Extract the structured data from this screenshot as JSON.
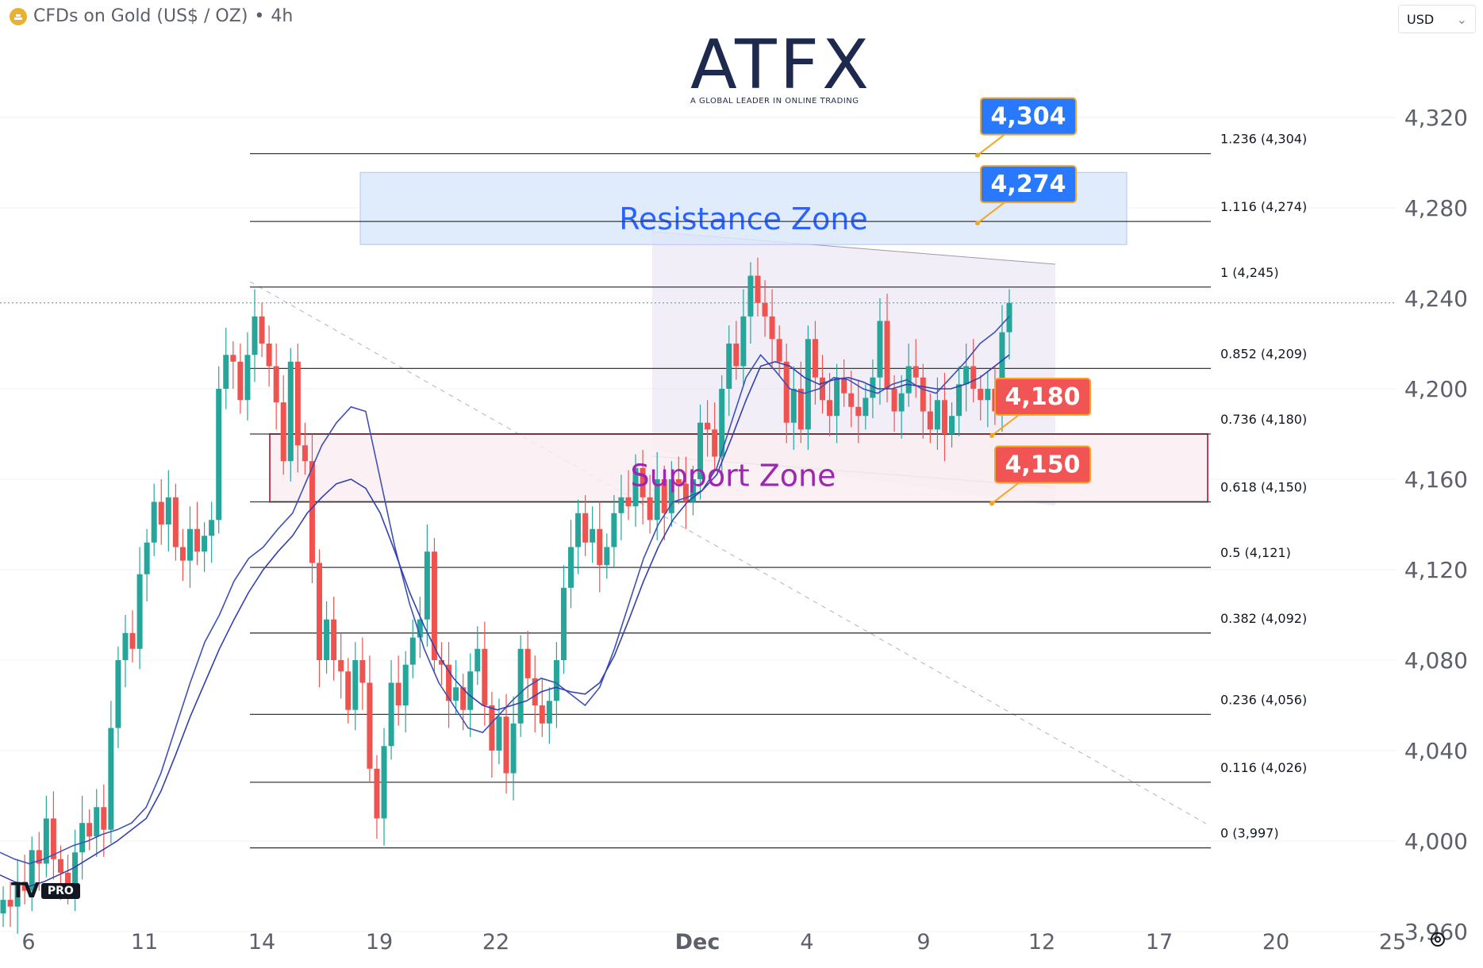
{
  "header": {
    "symbol": "CFDs on Gold (US$ / OZ)",
    "separator": "•",
    "interval": "4h",
    "currency": "USD",
    "chevron": "⌄"
  },
  "logo": {
    "main": "ATFX",
    "subtitle": "A GLOBAL LEADER IN ONLINE TRADING"
  },
  "platform_badge": {
    "mark": "TV",
    "label": "PRO"
  },
  "colors": {
    "up": "#26a69a",
    "down": "#ef5350",
    "ma_fast": "#3f51b5",
    "ma_slow": "#3340b0",
    "resistance_zone": "#dbe8fb",
    "resistance_text": "#2962ff",
    "support_zone": "#fbeef2",
    "support_border": "#b71c3c",
    "support_text": "#9c27b0",
    "blue_tag": "#2979ff",
    "red_tag": "#f05454",
    "tag_border": "#f5a623",
    "fib_line": "#3a3a3a",
    "channel": "#ece8f6"
  },
  "chart_data": {
    "type": "candlestick",
    "title": "CFDs on Gold (US$ / OZ) • 4h",
    "y_axis": {
      "ticks": [
        3960,
        4000,
        4040,
        4080,
        4120,
        4160,
        4200,
        4240,
        4280,
        4320
      ],
      "ylim": [
        3950,
        4330
      ],
      "tick_labels": [
        "3,960",
        "4,000",
        "4,040",
        "4,080",
        "4,120",
        "4,160",
        "4,200",
        "4,240",
        "4,280",
        "4,320"
      ]
    },
    "x_axis": {
      "tick_labels": [
        "6",
        "11",
        "14",
        "19",
        "22",
        "Dec",
        "4",
        "9",
        "12",
        "17",
        "20",
        "25"
      ]
    },
    "fibonacci": [
      {
        "label": "1.236 (4,304)",
        "value": 4304
      },
      {
        "label": "1.116 (4,274)",
        "value": 4274
      },
      {
        "label": "1 (4,245)",
        "value": 4245
      },
      {
        "label": "0.852 (4,209)",
        "value": 4209
      },
      {
        "label": "0.736 (4,180)",
        "value": 4180
      },
      {
        "label": "0.618 (4,150)",
        "value": 4150
      },
      {
        "label": "0.5 (4,121)",
        "value": 4121
      },
      {
        "label": "0.382 (4,092)",
        "value": 4092
      },
      {
        "label": "0.236 (4,056)",
        "value": 4056
      },
      {
        "label": "0.116 (4,026)",
        "value": 4026
      },
      {
        "label": "0 (3,997)",
        "value": 3997
      }
    ],
    "zones": [
      {
        "name": "Resistance Zone",
        "low": 4268,
        "high": 4295
      },
      {
        "name": "Support Zone",
        "low": 4150,
        "high": 4180
      }
    ],
    "price_tags": [
      {
        "text": "4,304",
        "value": 4304,
        "style": "blue"
      },
      {
        "text": "4,274",
        "value": 4274,
        "style": "blue"
      },
      {
        "text": "4,180",
        "value": 4180,
        "style": "red"
      },
      {
        "text": "4,150",
        "value": 4150,
        "style": "red"
      }
    ],
    "current_price": 4238,
    "candles": [
      [
        3968,
        3974
      ],
      [
        3974,
        3971
      ],
      [
        3971,
        3982
      ],
      [
        3982,
        3978
      ],
      [
        3978,
        3996
      ],
      [
        3996,
        3990
      ],
      [
        3990,
        4010
      ],
      [
        4010,
        3992
      ],
      [
        3992,
        3986
      ],
      [
        3986,
        3978
      ],
      [
        3978,
        3995
      ],
      [
        3995,
        4008
      ],
      [
        4008,
        4002
      ],
      [
        4002,
        4015
      ],
      [
        4015,
        4005
      ],
      [
        4005,
        4050
      ],
      [
        4050,
        4080
      ],
      [
        4080,
        4092
      ],
      [
        4092,
        4085
      ],
      [
        4085,
        4118
      ],
      [
        4118,
        4132
      ],
      [
        4132,
        4150
      ],
      [
        4150,
        4140
      ],
      [
        4140,
        4152
      ],
      [
        4152,
        4130
      ],
      [
        4130,
        4124
      ],
      [
        4124,
        4138
      ],
      [
        4138,
        4128
      ],
      [
        4128,
        4135
      ],
      [
        4135,
        4142
      ],
      [
        4142,
        4200
      ],
      [
        4200,
        4215
      ],
      [
        4215,
        4212
      ],
      [
        4212,
        4195
      ],
      [
        4195,
        4215
      ],
      [
        4215,
        4232
      ],
      [
        4232,
        4220
      ],
      [
        4220,
        4210
      ],
      [
        4210,
        4194
      ],
      [
        4194,
        4168
      ],
      [
        4168,
        4212
      ],
      [
        4212,
        4175
      ],
      [
        4175,
        4168
      ],
      [
        4168,
        4123
      ],
      [
        4123,
        4080
      ],
      [
        4080,
        4098
      ],
      [
        4098,
        4080
      ],
      [
        4080,
        4075
      ],
      [
        4075,
        4058
      ],
      [
        4058,
        4080
      ],
      [
        4080,
        4070
      ],
      [
        4070,
        4032
      ],
      [
        4032,
        4010
      ],
      [
        4010,
        4042
      ],
      [
        4042,
        4070
      ],
      [
        4070,
        4060
      ],
      [
        4060,
        4078
      ],
      [
        4078,
        4090
      ],
      [
        4090,
        4098
      ],
      [
        4098,
        4128
      ],
      [
        4128,
        4080
      ],
      [
        4080,
        4078
      ],
      [
        4078,
        4062
      ],
      [
        4062,
        4068
      ],
      [
        4068,
        4058
      ],
      [
        4058,
        4075
      ],
      [
        4075,
        4085
      ],
      [
        4085,
        4060
      ],
      [
        4060,
        4040
      ],
      [
        4040,
        4055
      ],
      [
        4055,
        4030
      ],
      [
        4030,
        4052
      ],
      [
        4052,
        4085
      ],
      [
        4085,
        4072
      ],
      [
        4072,
        4060
      ],
      [
        4060,
        4052
      ],
      [
        4052,
        4062
      ],
      [
        4062,
        4080
      ],
      [
        4080,
        4112
      ],
      [
        4112,
        4130
      ],
      [
        4130,
        4145
      ],
      [
        4145,
        4132
      ],
      [
        4132,
        4138
      ],
      [
        4138,
        4122
      ],
      [
        4122,
        4130
      ],
      [
        4130,
        4145
      ],
      [
        4145,
        4152
      ],
      [
        4152,
        4148
      ],
      [
        4148,
        4165
      ],
      [
        4165,
        4152
      ],
      [
        4152,
        4142
      ],
      [
        4142,
        4160
      ],
      [
        4160,
        4145
      ],
      [
        4145,
        4160
      ],
      [
        4160,
        4158
      ],
      [
        4158,
        4150
      ],
      [
        4150,
        4160
      ],
      [
        4160,
        4185
      ],
      [
        4185,
        4182
      ],
      [
        4182,
        4170
      ],
      [
        4170,
        4200
      ],
      [
        4200,
        4220
      ],
      [
        4220,
        4210
      ],
      [
        4210,
        4232
      ],
      [
        4232,
        4250
      ],
      [
        4250,
        4238
      ],
      [
        4238,
        4232
      ],
      [
        4232,
        4222
      ],
      [
        4222,
        4212
      ],
      [
        4212,
        4185
      ],
      [
        4185,
        4200
      ],
      [
        4200,
        4182
      ],
      [
        4182,
        4222
      ],
      [
        4222,
        4205
      ],
      [
        4205,
        4195
      ],
      [
        4195,
        4188
      ],
      [
        4188,
        4205
      ],
      [
        4205,
        4198
      ],
      [
        4198,
        4192
      ],
      [
        4192,
        4188
      ],
      [
        4188,
        4196
      ],
      [
        4196,
        4205
      ],
      [
        4205,
        4230
      ],
      [
        4230,
        4200
      ],
      [
        4200,
        4190
      ],
      [
        4190,
        4198
      ],
      [
        4198,
        4210
      ],
      [
        4210,
        4205
      ],
      [
        4205,
        4190
      ],
      [
        4190,
        4182
      ],
      [
        4182,
        4195
      ],
      [
        4195,
        4180
      ],
      [
        4180,
        4188
      ],
      [
        4188,
        4202
      ],
      [
        4202,
        4210
      ],
      [
        4210,
        4200
      ],
      [
        4200,
        4195
      ],
      [
        4195,
        4200
      ],
      [
        4200,
        4190
      ],
      [
        4190,
        4225
      ],
      [
        4225,
        4238
      ]
    ],
    "moving_averages": [
      {
        "name": "MA fast",
        "values": [
          3995,
          3992,
          3990,
          3992,
          3995,
          3998,
          4000,
          4003,
          4005,
          4008,
          4015,
          4030,
          4050,
          4070,
          4088,
          4100,
          4115,
          4125,
          4130,
          4138,
          4145,
          4160,
          4175,
          4185,
          4192,
          4190,
          4160,
          4130,
          4105,
          4085,
          4070,
          4060,
          4050,
          4048,
          4055,
          4062,
          4068,
          4072,
          4070,
          4065,
          4060,
          4068,
          4085,
          4105,
          4125,
          4140,
          4150,
          4152,
          4155,
          4165,
          4185,
          4205,
          4215,
          4208,
          4200,
          4198,
          4200,
          4205,
          4204,
          4200,
          4198,
          4202,
          4204,
          4200,
          4198,
          4205,
          4212,
          4220,
          4225,
          4232
        ]
      },
      {
        "name": "MA slow",
        "values": [
          3985,
          3982,
          3980,
          3982,
          3985,
          3988,
          3992,
          3996,
          4000,
          4005,
          4010,
          4022,
          4038,
          4055,
          4070,
          4085,
          4098,
          4110,
          4120,
          4128,
          4135,
          4145,
          4152,
          4158,
          4160,
          4156,
          4145,
          4128,
          4110,
          4095,
          4082,
          4072,
          4065,
          4060,
          4058,
          4060,
          4062,
          4066,
          4068,
          4066,
          4065,
          4070,
          4082,
          4098,
          4115,
          4130,
          4142,
          4150,
          4155,
          4162,
          4178,
          4195,
          4210,
          4212,
          4210,
          4205,
          4202,
          4204,
          4205,
          4203,
          4200,
          4200,
          4202,
          4201,
          4200,
          4200,
          4202,
          4205,
          4210,
          4215
        ]
      }
    ]
  }
}
